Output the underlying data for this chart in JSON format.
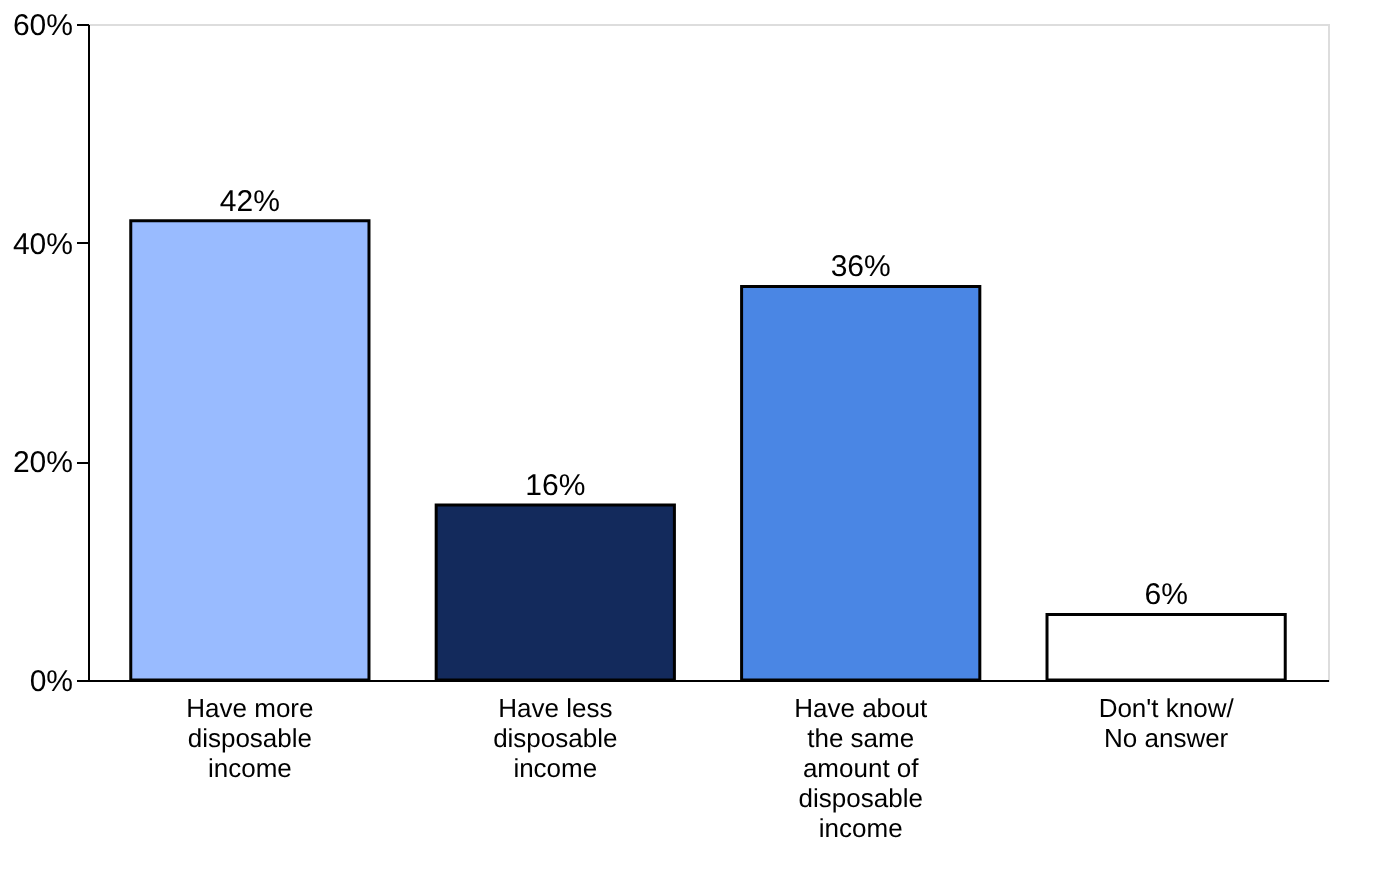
{
  "chart_data": {
    "type": "bar",
    "categories": [
      "Have more disposable income",
      "Have less disposable income",
      "Have about the same amount of disposable income",
      "Don't know/ No answer"
    ],
    "values": [
      42,
      16,
      36,
      6
    ],
    "colors": [
      "#99bbff",
      "#132a5c",
      "#4a86e4",
      "#ffffff"
    ],
    "value_labels": [
      "42%",
      "16%",
      "36%",
      "6%"
    ],
    "ylim": [
      0,
      60
    ],
    "yticks": [
      {
        "value": 0,
        "label": "0%"
      },
      {
        "value": 20,
        "label": "20%"
      },
      {
        "value": 40,
        "label": "40%"
      },
      {
        "value": 60,
        "label": "60%"
      }
    ],
    "grid": false,
    "legend": false
  }
}
